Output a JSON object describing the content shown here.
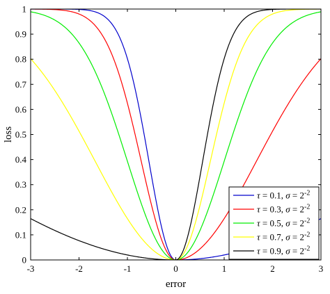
{
  "chart_data": {
    "type": "line",
    "title": "",
    "xlabel": "error",
    "ylabel": "loss",
    "xlim": [
      -3,
      3
    ],
    "ylim": [
      0,
      1
    ],
    "xticks": [
      -3,
      -2,
      -1,
      0,
      1,
      2,
      3
    ],
    "xtick_labels": [
      "-3",
      "-2",
      "-1",
      "0",
      "1",
      "2",
      "3"
    ],
    "yticks": [
      0,
      0.1,
      0.2,
      0.3,
      0.4,
      0.5,
      0.6,
      0.7,
      0.8,
      0.9,
      1
    ],
    "ytick_labels": [
      "0",
      "0.1",
      "0.2",
      "0.3",
      "0.4",
      "0.5",
      "0.6",
      "0.7",
      "0.8",
      "0.9",
      "1"
    ],
    "grid": false,
    "legend_position": "bottom-right",
    "sigma_label": "2",
    "sigma_exponent": "-2",
    "sigma": 0.25,
    "series": [
      {
        "tau": 0.1,
        "tau_label": "0.1",
        "color": "#0000cc"
      },
      {
        "tau": 0.3,
        "tau_label": "0.3",
        "color": "#ff0000"
      },
      {
        "tau": 0.5,
        "tau_label": "0.5",
        "color": "#00ee00"
      },
      {
        "tau": 0.7,
        "tau_label": "0.7",
        "color": "#ffff00"
      },
      {
        "tau": 0.9,
        "tau_label": "0.9",
        "color": "#000000"
      }
    ]
  }
}
